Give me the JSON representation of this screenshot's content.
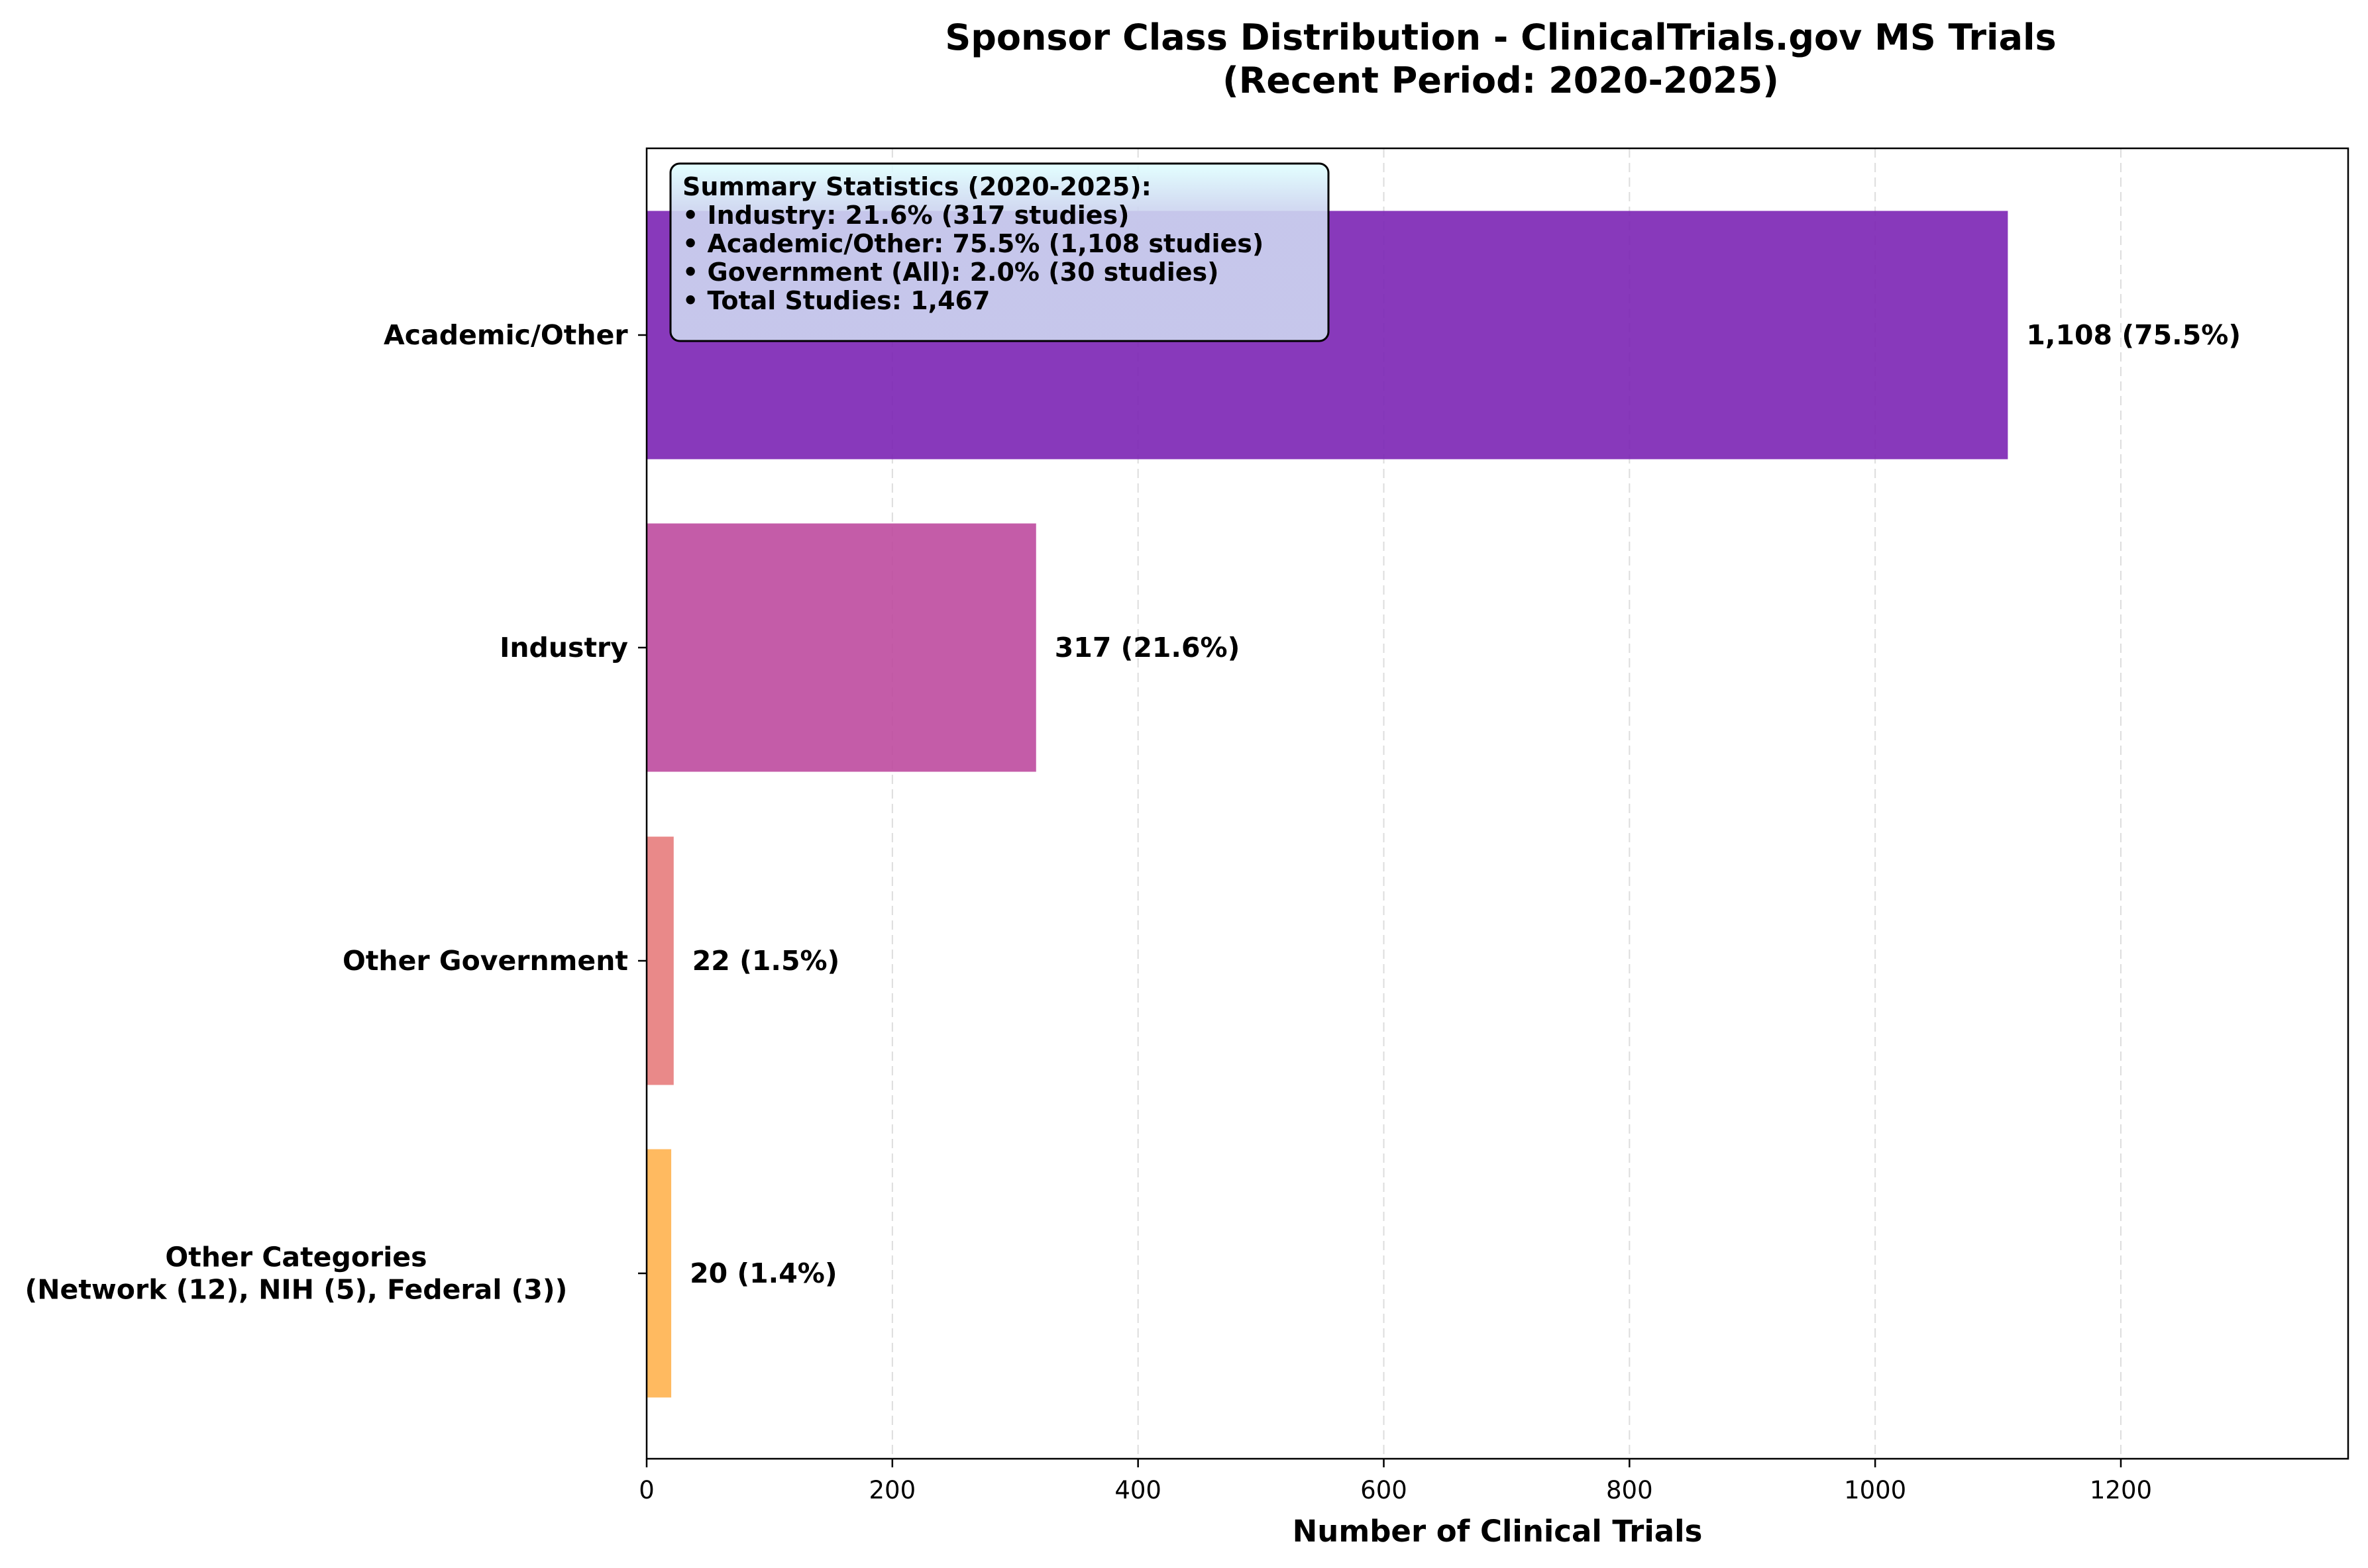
{
  "chart_data": {
    "type": "bar",
    "orientation": "horizontal",
    "title": "Sponsor Class Distribution - ClinicalTrials.gov MS Trials",
    "subtitle": "(Recent Period: 2020-2025)",
    "xlabel": "Number of Clinical Trials",
    "ylabel": "",
    "xlim": [
      0,
      1385
    ],
    "xticks": [
      0,
      200,
      400,
      600,
      800,
      1000,
      1200
    ],
    "grid": "x-dashed",
    "categories": [
      {
        "label": "Academic/Other",
        "value": 1108,
        "bar_label": "1,108 (75.5%)",
        "color": "#7B24B4"
      },
      {
        "label": "Industry",
        "value": 317,
        "bar_label": "317 (21.6%)",
        "color": "#BE4A9E"
      },
      {
        "label": "Other Government",
        "value": 22,
        "bar_label": "22 (1.5%)",
        "color": "#E77C7C"
      },
      {
        "label": "Other Categories\n(Network (12), NIH (5), Federal (3))",
        "value": 20,
        "bar_label": "20 (1.4%)",
        "color": "#FFB24F"
      }
    ],
    "annotation": {
      "lines": [
        "Summary Statistics (2020-2025):",
        "• Industry: 21.6% (317 studies)",
        "• Academic/Other: 75.5% (1,108 studies)",
        "• Government (All): 2.0% (30 studies)",
        "• Total Studies: 1,467"
      ],
      "placement": "top-left"
    }
  }
}
